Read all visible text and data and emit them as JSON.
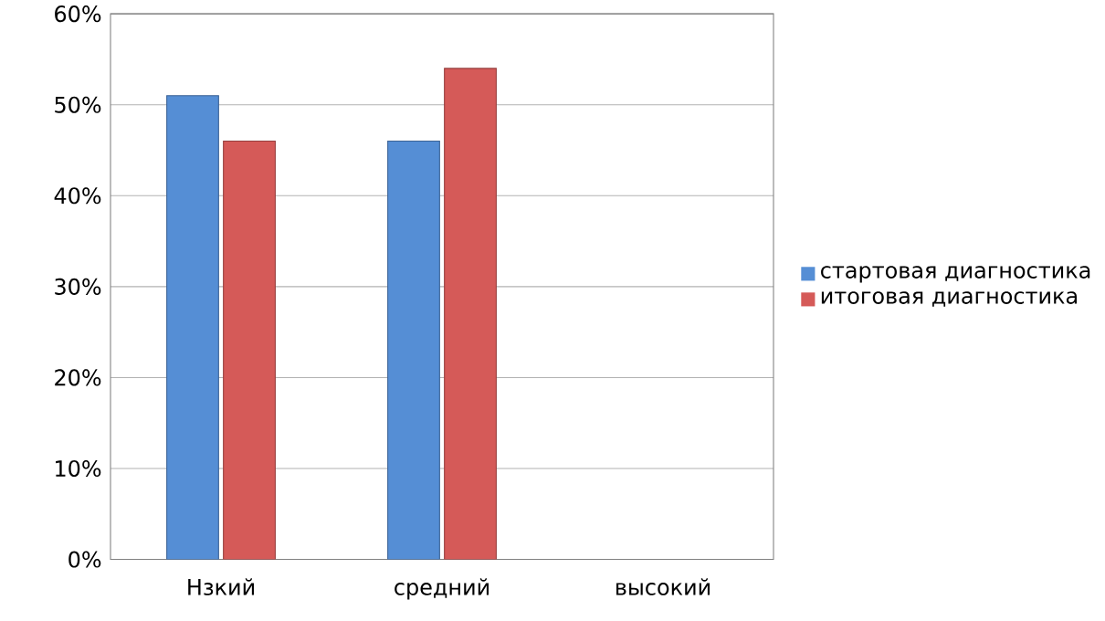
{
  "chart_data": {
    "type": "bar",
    "categories": [
      "Нзкий",
      "средний",
      "высокий"
    ],
    "series": [
      {
        "name": "стартовая диагностика",
        "color": "#558ed5",
        "values": [
          51,
          46,
          null
        ]
      },
      {
        "name": "итоговая диагностика",
        "color": "#d55a58",
        "values": [
          46,
          54,
          null
        ]
      }
    ],
    "ylim": [
      0,
      60
    ],
    "yticks": [
      {
        "value": 0,
        "label": "0%"
      },
      {
        "value": 10,
        "label": "10%"
      },
      {
        "value": 20,
        "label": "20%"
      },
      {
        "value": 30,
        "label": "30%"
      },
      {
        "value": 40,
        "label": "40%"
      },
      {
        "value": 50,
        "label": "50%"
      },
      {
        "value": 60,
        "label": "60%"
      }
    ],
    "grid": "y",
    "legend": "right"
  }
}
